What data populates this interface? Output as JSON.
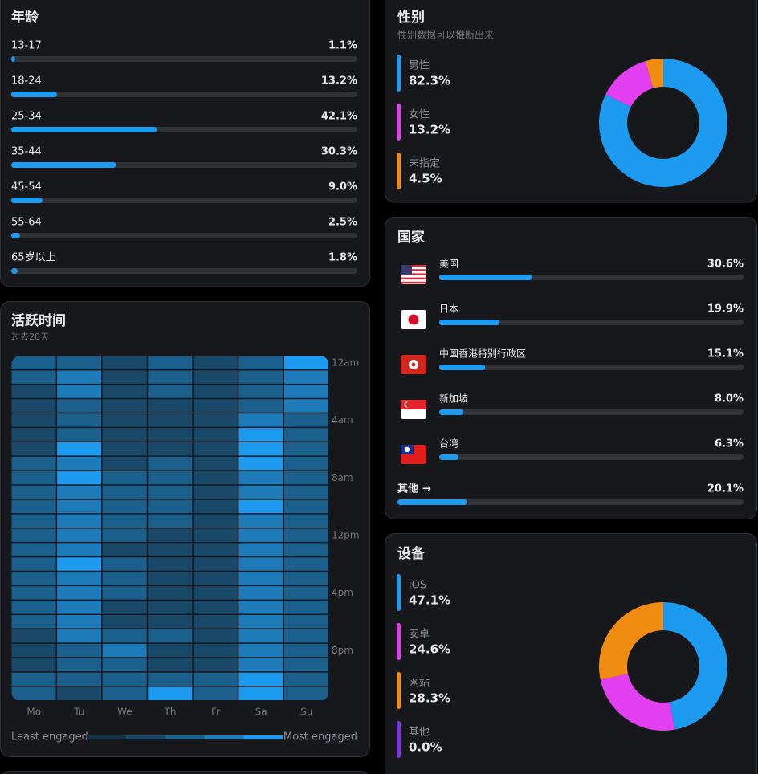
{
  "age": {
    "title": "年龄",
    "xlim": [
      0,
      100
    ],
    "color": "#1d9bf0",
    "rows": [
      {
        "label": "13-17",
        "value": 1.1,
        "value_label": "1.1%"
      },
      {
        "label": "18-24",
        "value": 13.2,
        "value_label": "13.2%"
      },
      {
        "label": "25-34",
        "value": 42.1,
        "value_label": "42.1%"
      },
      {
        "label": "35-44",
        "value": 30.3,
        "value_label": "30.3%"
      },
      {
        "label": "45-54",
        "value": 9.0,
        "value_label": "9.0%"
      },
      {
        "label": "55-64",
        "value": 2.5,
        "value_label": "2.5%"
      },
      {
        "label": "65岁以上",
        "value": 1.8,
        "value_label": "1.8%"
      }
    ]
  },
  "gender": {
    "title": "性别",
    "subtitle": "性别数据可以推断出来",
    "items": [
      {
        "name": "男性",
        "value": 82.3,
        "value_label": "82.3%",
        "color": "#1d9bf0"
      },
      {
        "name": "女性",
        "value": 13.2,
        "value_label": "13.2%",
        "color": "#e23ff0"
      },
      {
        "name": "未指定",
        "value": 4.5,
        "value_label": "4.5%",
        "color": "#f08c12"
      }
    ]
  },
  "activity": {
    "title": "活跃时间",
    "subtitle": "过去28天",
    "days": [
      "Mo",
      "Tu",
      "We",
      "Th",
      "Fr",
      "Sa",
      "Su"
    ],
    "hours": [
      "12am",
      null,
      null,
      null,
      "4am",
      null,
      null,
      null,
      "8am",
      null,
      null,
      null,
      "12pm",
      null,
      null,
      null,
      "4pm",
      null,
      null,
      null,
      "8pm",
      null,
      null,
      null
    ],
    "colors": [
      "#16324a",
      "#1a4868",
      "#1b5f8c",
      "#1c7bb8",
      "#1d9bf0"
    ],
    "values": [
      [
        2,
        2,
        1,
        2,
        1,
        2,
        4
      ],
      [
        2,
        3,
        1,
        2,
        1,
        2,
        3
      ],
      [
        1,
        3,
        1,
        2,
        1,
        2,
        3
      ],
      [
        1,
        2,
        1,
        1,
        1,
        2,
        3
      ],
      [
        1,
        2,
        1,
        1,
        1,
        3,
        2
      ],
      [
        1,
        2,
        1,
        1,
        1,
        4,
        2
      ],
      [
        1,
        4,
        1,
        1,
        1,
        4,
        2
      ],
      [
        2,
        3,
        1,
        2,
        1,
        4,
        2
      ],
      [
        2,
        4,
        2,
        2,
        1,
        3,
        2
      ],
      [
        2,
        3,
        2,
        2,
        1,
        3,
        2
      ],
      [
        2,
        3,
        2,
        2,
        1,
        4,
        2
      ],
      [
        2,
        3,
        2,
        2,
        1,
        3,
        2
      ],
      [
        2,
        3,
        2,
        1,
        1,
        3,
        2
      ],
      [
        2,
        3,
        1,
        1,
        1,
        3,
        2
      ],
      [
        2,
        4,
        2,
        1,
        1,
        3,
        2
      ],
      [
        2,
        3,
        2,
        1,
        1,
        3,
        2
      ],
      [
        2,
        3,
        2,
        1,
        1,
        3,
        2
      ],
      [
        2,
        3,
        1,
        1,
        1,
        3,
        2
      ],
      [
        2,
        3,
        1,
        1,
        1,
        3,
        2
      ],
      [
        1,
        3,
        2,
        2,
        1,
        3,
        2
      ],
      [
        1,
        2,
        3,
        1,
        1,
        3,
        2
      ],
      [
        1,
        2,
        2,
        1,
        1,
        3,
        2
      ],
      [
        2,
        2,
        2,
        2,
        2,
        4,
        2
      ],
      [
        2,
        1,
        2,
        4,
        2,
        4,
        2
      ]
    ],
    "legend_min": "Least engaged",
    "legend_max": "Most engaged"
  },
  "country": {
    "title": "国家",
    "xlim": [
      0,
      100
    ],
    "color": "#1d9bf0",
    "rows": [
      {
        "name": "美国",
        "value": 30.6,
        "value_label": "30.6%"
      },
      {
        "name": "日本",
        "value": 19.9,
        "value_label": "19.9%"
      },
      {
        "name": "中国香港特别行政区",
        "value": 15.1,
        "value_label": "15.1%"
      },
      {
        "name": "新加坡",
        "value": 8.0,
        "value_label": "8.0%"
      },
      {
        "name": "台湾",
        "value": 6.3,
        "value_label": "6.3%"
      }
    ],
    "other": {
      "name": "其他",
      "value": 20.1,
      "value_label": "20.1%"
    }
  },
  "devices": {
    "title": "设备",
    "items": [
      {
        "name": "iOS",
        "value": 47.1,
        "value_label": "47.1%",
        "color": "#1d9bf0"
      },
      {
        "name": "安卓",
        "value": 24.6,
        "value_label": "24.6%",
        "color": "#e23ff0"
      },
      {
        "name": "网站",
        "value": 28.3,
        "value_label": "28.3%",
        "color": "#f08c12"
      },
      {
        "name": "其他",
        "value": 0.0,
        "value_label": "0.0%",
        "color": "#7b35e8"
      }
    ]
  }
}
